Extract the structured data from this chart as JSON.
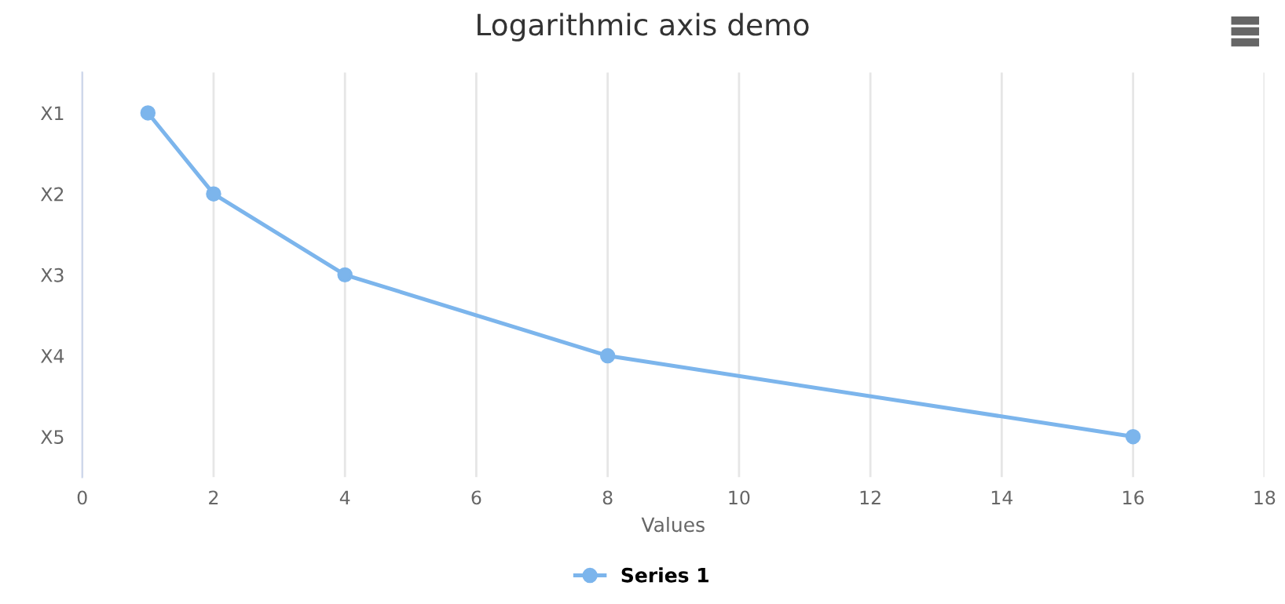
{
  "chart_data": {
    "type": "line",
    "title": "Logarithmic axis demo",
    "xlabel": "Values",
    "orientation": "horizontal",
    "categories": [
      "X1",
      "X2",
      "X3",
      "X4",
      "X5"
    ],
    "series": [
      {
        "name": "Series 1",
        "color": "#7cb5ec",
        "values": [
          1,
          2,
          4,
          8,
          16
        ]
      }
    ],
    "xlim": [
      0,
      18
    ],
    "xticks": [
      0,
      2,
      4,
      6,
      8,
      10,
      12,
      14,
      16,
      18
    ],
    "grid": "x",
    "legend": "bottom",
    "marker": "circle",
    "line_style": "solid"
  }
}
